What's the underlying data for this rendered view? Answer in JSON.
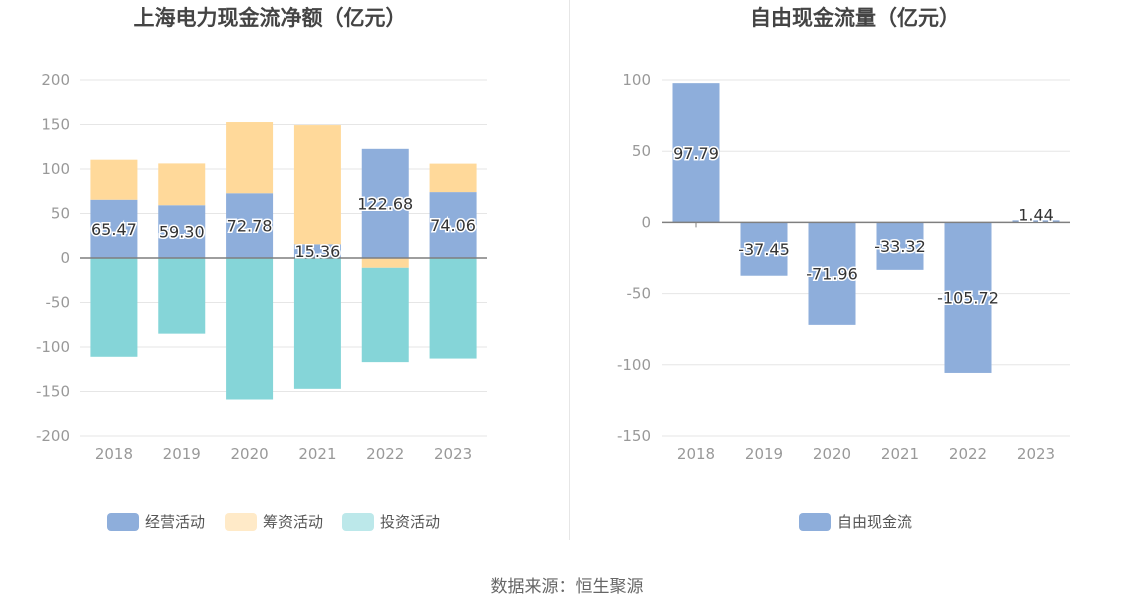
{
  "source_label": "数据来源：恒生聚源",
  "colors": {
    "operating": "#8eaedb",
    "financing": "#ffd99a",
    "investing": "#85d5d8",
    "free_cash_flow": "#8eaedb",
    "axis_text": "#999999",
    "title": "#444444",
    "grid": "#e6e6e6",
    "zero_line": "#7f7f7f"
  },
  "chart_data": [
    {
      "type": "bar",
      "stacked": true,
      "title": "上海电力现金流净额（亿元）",
      "categories": [
        "2018",
        "2019",
        "2020",
        "2021",
        "2022",
        "2023"
      ],
      "ylim": [
        -200,
        200
      ],
      "yticks": [
        200,
        150,
        100,
        50,
        0,
        -50,
        -100,
        -150,
        -200
      ],
      "grid": true,
      "legend_position": "bottom",
      "series": [
        {
          "name": "经营活动",
          "values": [
            65.47,
            59.3,
            72.78,
            15.36,
            122.68,
            74.06
          ],
          "labels": [
            "65.47",
            "59.30",
            "72.78",
            "15.36",
            "122.68",
            "74.06"
          ]
        },
        {
          "name": "筹资活动",
          "values": [
            45,
            47,
            80,
            134,
            -11,
            32
          ]
        },
        {
          "name": "投资活动",
          "values": [
            -111,
            -85,
            -159,
            -147,
            -106,
            -113
          ]
        }
      ]
    },
    {
      "type": "bar",
      "title": "自由现金流量（亿元）",
      "categories": [
        "2018",
        "2019",
        "2020",
        "2021",
        "2022",
        "2023"
      ],
      "ylim": [
        -150,
        100
      ],
      "yticks": [
        100,
        50,
        0,
        -50,
        -100,
        -150
      ],
      "grid": true,
      "legend_position": "bottom",
      "series": [
        {
          "name": "自由现金流",
          "values": [
            97.79,
            -37.45,
            -71.96,
            -33.32,
            -105.72,
            1.44
          ],
          "labels": [
            "97.79",
            "-37.45",
            "-71.96",
            "-33.32",
            "-105.72",
            "1.44"
          ]
        }
      ]
    }
  ]
}
